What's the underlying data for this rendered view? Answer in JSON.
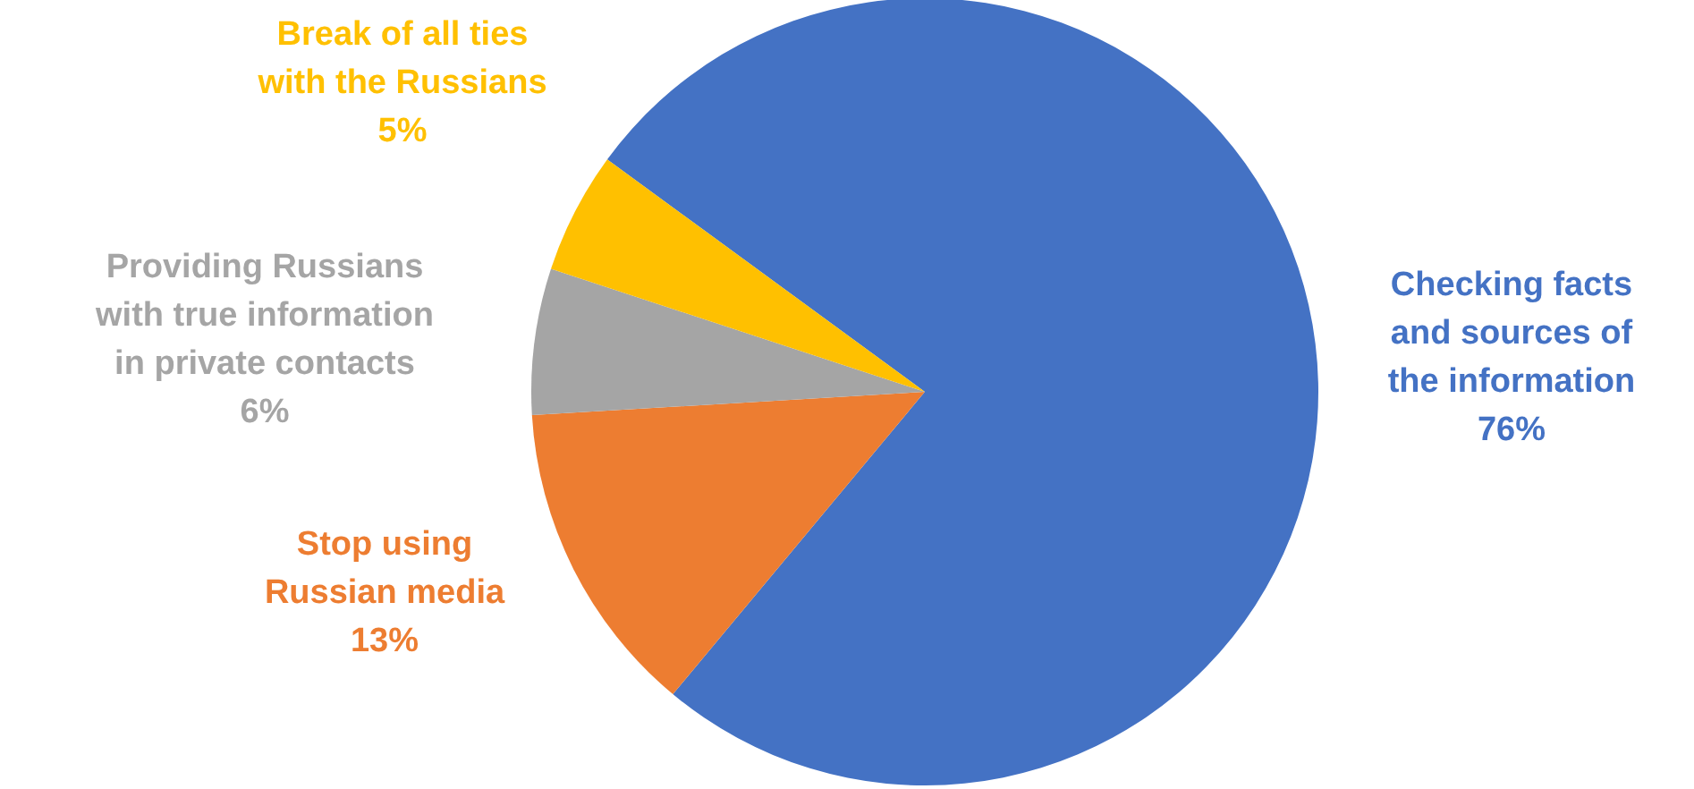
{
  "chart_data": {
    "type": "pie",
    "categories": [
      "Checking facts and sources of the information",
      "Stop using Russian media",
      "Providing Russians with true information in private contacts",
      "Break of all ties with the Russians"
    ],
    "values": [
      76,
      13,
      6,
      5
    ],
    "colors": [
      "#4472c4",
      "#ed7d31",
      "#a5a5a5",
      "#ffc000"
    ],
    "value_labels": [
      "76%",
      "13%",
      "6%",
      "5%"
    ]
  }
}
